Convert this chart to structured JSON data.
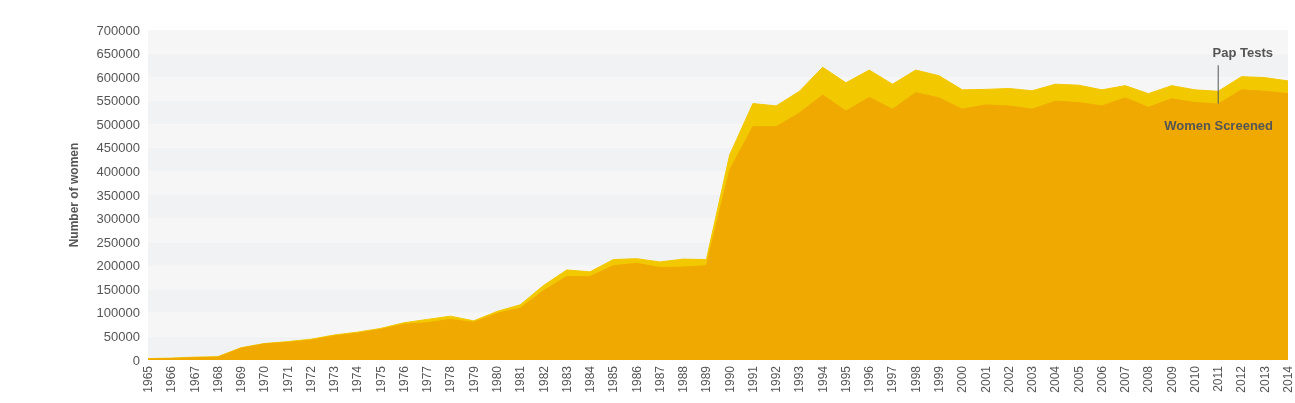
{
  "chart_data": {
    "type": "area",
    "ylabel": "Number of women",
    "categories": [
      "1965",
      "1966",
      "1967",
      "1968",
      "1969",
      "1970",
      "1971",
      "1972",
      "1973",
      "1974",
      "1975",
      "1976",
      "1977",
      "1978",
      "1979",
      "1980",
      "1981",
      "1982",
      "1983",
      "1984",
      "1985",
      "1986",
      "1987",
      "1988",
      "1989",
      "1990",
      "1991",
      "1992",
      "1993",
      "1994",
      "1995",
      "1996",
      "1997",
      "1998",
      "1999",
      "2000",
      "2001",
      "2002",
      "2003",
      "2004",
      "2005",
      "2006",
      "2007",
      "2008",
      "2009",
      "2010",
      "2011",
      "2012",
      "2013",
      "2014"
    ],
    "series": [
      {
        "name": "Pap Tests",
        "color": "#f2c800",
        "values": [
          3000,
          4000,
          6000,
          7000,
          26000,
          35000,
          39000,
          44000,
          53000,
          59000,
          67000,
          79000,
          86000,
          93000,
          83000,
          103000,
          117000,
          158000,
          191000,
          187000,
          213000,
          215000,
          208000,
          214000,
          213000,
          435000,
          544000,
          539000,
          570000,
          621000,
          588000,
          615000,
          585000,
          615000,
          603000,
          573000,
          574000,
          576000,
          571000,
          585000,
          583000,
          573000,
          582000,
          565000,
          582000,
          573000,
          570000,
          601000,
          599000,
          592000
        ]
      },
      {
        "name": "Women Screened",
        "color": "#f0a900",
        "values": [
          2000,
          3000,
          5000,
          6000,
          25000,
          34000,
          37000,
          42000,
          51000,
          57000,
          65000,
          76000,
          79000,
          86000,
          80000,
          99000,
          110000,
          147000,
          177000,
          177000,
          200000,
          205000,
          196000,
          197000,
          200000,
          403000,
          495000,
          495000,
          524000,
          562000,
          528000,
          557000,
          532000,
          567000,
          556000,
          532000,
          541000,
          539000,
          532000,
          549000,
          546000,
          539000,
          556000,
          536000,
          554000,
          546000,
          543000,
          573000,
          570000,
          565000
        ]
      }
    ],
    "ylim": [
      0,
      700000
    ],
    "yticks": [
      0,
      50000,
      100000,
      150000,
      200000,
      250000,
      300000,
      350000,
      400000,
      450000,
      500000,
      550000,
      600000,
      650000,
      700000
    ],
    "legend": false,
    "marker": "none"
  }
}
